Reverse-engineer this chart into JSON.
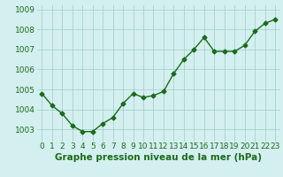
{
  "x": [
    0,
    1,
    2,
    3,
    4,
    5,
    6,
    7,
    8,
    9,
    10,
    11,
    12,
    13,
    14,
    15,
    16,
    17,
    18,
    19,
    20,
    21,
    22,
    23
  ],
  "y": [
    1004.8,
    1004.2,
    1003.8,
    1003.2,
    1002.9,
    1002.9,
    1003.3,
    1003.6,
    1004.3,
    1004.8,
    1004.6,
    1004.7,
    1004.9,
    1005.8,
    1006.5,
    1007.0,
    1007.6,
    1006.9,
    1006.9,
    1006.9,
    1007.2,
    1007.9,
    1008.3,
    1008.5
  ],
  "line_color": "#1a6b1a",
  "marker": "D",
  "marker_size": 2.5,
  "line_width": 1.0,
  "bg_color": "#d4efef",
  "grid_color": "#a0cccc",
  "xlabel": "Graphe pression niveau de la mer (hPa)",
  "xlabel_color": "#1a6b1a",
  "xlabel_fontsize": 7.5,
  "tick_color": "#1a6b1a",
  "tick_fontsize": 6.5,
  "ylim": [
    1002.4,
    1009.2
  ],
  "xlim": [
    -0.5,
    23.5
  ],
  "yticks": [
    1003,
    1004,
    1005,
    1006,
    1007,
    1008,
    1009
  ]
}
